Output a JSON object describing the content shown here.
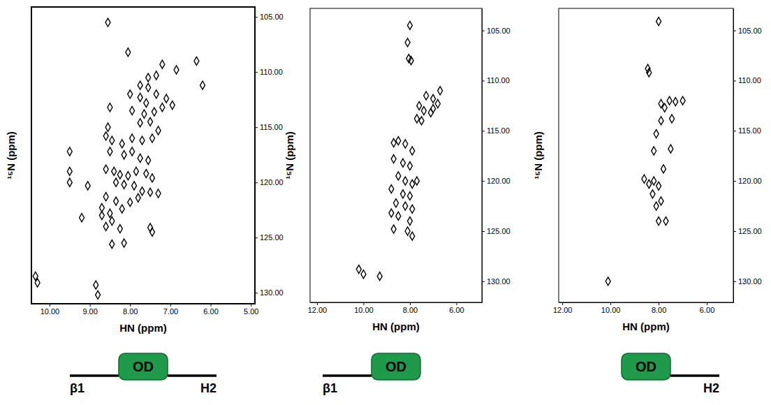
{
  "chart_data": [
    {
      "type": "scatter",
      "x_label": "HN (ppm)",
      "y_label": "¹⁵N (ppm)",
      "marker": "diamond",
      "color": "#000000",
      "x": [
        8.55,
        8.05,
        7.2,
        6.85,
        6.35,
        6.2,
        7.35,
        7.55,
        7.75,
        7.55,
        8.0,
        7.75,
        7.6,
        7.35,
        7.1,
        6.95,
        8.5,
        7.95,
        7.65,
        7.4,
        7.2,
        7.75,
        7.5,
        8.55,
        8.6,
        8.45,
        8.2,
        7.95,
        7.7,
        7.45,
        7.3,
        9.5,
        8.5,
        8.15,
        7.95,
        7.75,
        7.55,
        8.6,
        8.4,
        8.25,
        8.05,
        7.85,
        7.6,
        7.45,
        9.5,
        8.35,
        8.15,
        7.9,
        9.5,
        9.05,
        7.7,
        7.5,
        7.3,
        8.6,
        8.35,
        8.0,
        7.8,
        8.7,
        8.5,
        8.2,
        8.7,
        9.2,
        8.45,
        8.6,
        8.25,
        7.5,
        7.45,
        8.45,
        8.15,
        10.3,
        10.35,
        8.85,
        8.8
      ],
      "y": [
        105.5,
        108.2,
        109.3,
        109.8,
        109.0,
        111.2,
        110.3,
        110.5,
        111.2,
        111.4,
        112.0,
        112.3,
        112.8,
        112.0,
        112.4,
        113.0,
        113.2,
        113.5,
        113.8,
        113.6,
        113.2,
        114.6,
        114.5,
        115.0,
        115.8,
        116.2,
        116.5,
        116.0,
        116.2,
        116.0,
        115.3,
        117.2,
        117.2,
        117.5,
        117.2,
        117.8,
        118.0,
        118.8,
        119.0,
        119.3,
        119.4,
        119.0,
        119.2,
        119.6,
        119.0,
        120.0,
        120.2,
        120.3,
        120.0,
        120.3,
        120.8,
        120.9,
        121.0,
        121.3,
        121.7,
        121.8,
        121.4,
        122.3,
        122.8,
        122.4,
        123.0,
        123.2,
        123.5,
        124.0,
        124.2,
        124.1,
        124.5,
        125.6,
        125.5,
        129.1,
        128.5,
        129.3,
        130.2
      ],
      "xlim": [
        10.45,
        4.9
      ],
      "ylim": [
        131,
        104.1
      ],
      "xticks": [
        {
          "value": 10,
          "label": "10.00"
        },
        {
          "value": 9,
          "label": "9.00"
        },
        {
          "value": 8,
          "label": "8.00"
        },
        {
          "value": 7,
          "label": "7.00"
        },
        {
          "value": 6,
          "label": "6.00"
        },
        {
          "value": 5,
          "label": "5.00"
        }
      ],
      "yticks": [
        {
          "value": 105,
          "label": "105.00"
        },
        {
          "value": 110,
          "label": "110.00"
        },
        {
          "value": 115,
          "label": "115.00"
        },
        {
          "value": 120,
          "label": "120.00"
        },
        {
          "value": 125,
          "label": "125.00"
        },
        {
          "value": 130,
          "label": "130.00"
        }
      ],
      "annotations": {
        "n_terminus": "β1",
        "domain": "OD",
        "c_terminus": "H2"
      }
    },
    {
      "type": "scatter",
      "x_label": "HN (ppm)",
      "y_label": "¹⁵N (ppm)",
      "marker": "diamond",
      "color": "#000000",
      "x": [
        8.0,
        8.1,
        8.05,
        7.95,
        7.3,
        7.0,
        6.8,
        7.6,
        7.4,
        7.1,
        7.7,
        7.5,
        8.7,
        8.5,
        8.2,
        7.9,
        8.7,
        8.3,
        8.0,
        8.5,
        8.2,
        7.9,
        7.7,
        8.8,
        8.3,
        8.0,
        8.6,
        8.2,
        7.9,
        8.8,
        8.5,
        8.0,
        8.7,
        8.1,
        7.9,
        10.2,
        10.0,
        9.3,
        7.0,
        6.7
      ],
      "y": [
        104.5,
        106.2,
        107.8,
        108.0,
        111.5,
        111.8,
        112.3,
        112.5,
        113.0,
        113.2,
        113.8,
        114.0,
        116.2,
        116.0,
        116.3,
        117.0,
        117.8,
        118.2,
        118.5,
        119.5,
        120.0,
        120.3,
        120.0,
        120.8,
        121.3,
        121.5,
        122.2,
        122.5,
        122.8,
        123.2,
        123.5,
        124.0,
        124.8,
        125.0,
        125.5,
        128.8,
        129.3,
        129.5,
        112.8,
        111.0
      ],
      "xlim": [
        12.3,
        4.9
      ],
      "ylim": [
        132.1,
        102.8
      ],
      "xticks": [
        {
          "value": 12,
          "label": "12.00"
        },
        {
          "value": 10,
          "label": "10.00"
        },
        {
          "value": 8,
          "label": "8.00"
        },
        {
          "value": 6,
          "label": "6.00"
        }
      ],
      "yticks": [
        {
          "value": 105,
          "label": "105.00"
        },
        {
          "value": 110,
          "label": "110.00"
        },
        {
          "value": 115,
          "label": "115.00"
        },
        {
          "value": 120,
          "label": "120.00"
        },
        {
          "value": 125,
          "label": "125.00"
        },
        {
          "value": 130,
          "label": "130.00"
        }
      ],
      "annotations": {
        "n_terminus": "β1",
        "domain": "OD"
      }
    },
    {
      "type": "scatter",
      "x_label": "HN (ppm)",
      "y_label": "¹⁵N (ppm)",
      "marker": "diamond",
      "color": "#000000",
      "x": [
        8.0,
        8.45,
        8.4,
        7.55,
        7.3,
        7.0,
        7.9,
        7.75,
        7.9,
        7.45,
        8.1,
        7.5,
        8.6,
        8.4,
        8.2,
        8.0,
        8.25,
        7.9,
        8.1,
        8.0,
        7.7,
        8.2,
        10.1,
        7.8
      ],
      "y": [
        104.1,
        108.8,
        109.2,
        112.0,
        112.1,
        112.0,
        112.3,
        112.7,
        114.0,
        113.8,
        115.3,
        116.8,
        119.8,
        120.3,
        120.0,
        120.5,
        121.3,
        122.0,
        122.5,
        124.0,
        124.0,
        117.0,
        130.0,
        118.8
      ],
      "xlim": [
        12.15,
        4.9
      ],
      "ylim": [
        132.1,
        102.8
      ],
      "xticks": [
        {
          "value": 12,
          "label": "12.00"
        },
        {
          "value": 10,
          "label": "10.00"
        },
        {
          "value": 8,
          "label": "8.00"
        },
        {
          "value": 6,
          "label": "6.00"
        }
      ],
      "yticks": [
        {
          "value": 105,
          "label": "105.00"
        },
        {
          "value": 110,
          "label": "110.00"
        },
        {
          "value": 115,
          "label": "115.00"
        },
        {
          "value": 120,
          "label": "120.00"
        },
        {
          "value": 125,
          "label": "125.00"
        },
        {
          "value": 130,
          "label": "130.00"
        }
      ],
      "annotations": {
        "domain": "OD",
        "c_terminus": "H2"
      }
    }
  ]
}
